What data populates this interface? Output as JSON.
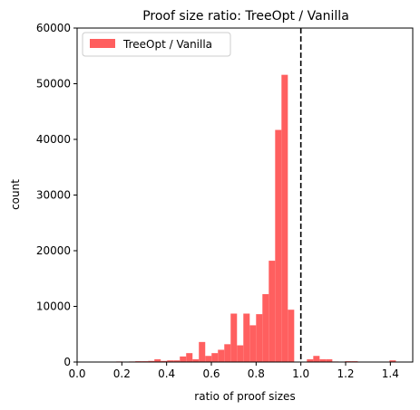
{
  "chart_data": {
    "type": "bar",
    "title": "Proof size ratio: TreeOpt / Vanilla",
    "xlabel": "ratio of proof sizes",
    "ylabel": "count",
    "xlim": [
      0.0,
      1.5
    ],
    "ylim": [
      0,
      60000
    ],
    "xticks": [
      0.0,
      0.2,
      0.4,
      0.6,
      0.8,
      1.0,
      1.2,
      1.4
    ],
    "xtick_labels": [
      "0.0",
      "0.2",
      "0.4",
      "0.6",
      "0.8",
      "1.0",
      "1.2",
      "1.4"
    ],
    "yticks": [
      0,
      10000,
      20000,
      30000,
      40000,
      50000,
      60000
    ],
    "ytick_labels": [
      "0",
      "10000",
      "20000",
      "30000",
      "40000",
      "50000",
      "60000"
    ],
    "grid": false,
    "legend": {
      "placement": "top-left",
      "entries": [
        "TreeOpt / Vanilla"
      ]
    },
    "reference_line": {
      "x": 1.0,
      "style": "dashed",
      "color": "#000000"
    },
    "series": [
      {
        "name": "TreeOpt / Vanilla",
        "color": "#ff5f5f",
        "bin_width": 0.0284,
        "bins": [
          {
            "x0": 0.175,
            "count": 100
          },
          {
            "x0": 0.2034,
            "count": 50
          },
          {
            "x0": 0.2318,
            "count": 100
          },
          {
            "x0": 0.2602,
            "count": 150
          },
          {
            "x0": 0.2886,
            "count": 150
          },
          {
            "x0": 0.317,
            "count": 200
          },
          {
            "x0": 0.3454,
            "count": 500
          },
          {
            "x0": 0.3738,
            "count": 200
          },
          {
            "x0": 0.4022,
            "count": 300
          },
          {
            "x0": 0.4306,
            "count": 300
          },
          {
            "x0": 0.459,
            "count": 1000
          },
          {
            "x0": 0.4874,
            "count": 1600
          },
          {
            "x0": 0.5158,
            "count": 500
          },
          {
            "x0": 0.5442,
            "count": 3600
          },
          {
            "x0": 0.5726,
            "count": 1100
          },
          {
            "x0": 0.601,
            "count": 1600
          },
          {
            "x0": 0.6294,
            "count": 2200
          },
          {
            "x0": 0.6578,
            "count": 3200
          },
          {
            "x0": 0.6862,
            "count": 8700
          },
          {
            "x0": 0.7146,
            "count": 3000
          },
          {
            "x0": 0.743,
            "count": 8700
          },
          {
            "x0": 0.7714,
            "count": 6600
          },
          {
            "x0": 0.7998,
            "count": 8600
          },
          {
            "x0": 0.8282,
            "count": 12200
          },
          {
            "x0": 0.8566,
            "count": 18200
          },
          {
            "x0": 0.885,
            "count": 41700
          },
          {
            "x0": 0.9134,
            "count": 51600
          },
          {
            "x0": 0.9418,
            "count": 9400
          },
          {
            "x0": 1.027,
            "count": 500
          },
          {
            "x0": 1.0554,
            "count": 1100
          },
          {
            "x0": 1.0838,
            "count": 500
          },
          {
            "x0": 1.1122,
            "count": 500
          },
          {
            "x0": 1.1406,
            "count": 100
          },
          {
            "x0": 1.1974,
            "count": 150
          },
          {
            "x0": 1.2258,
            "count": 150
          },
          {
            "x0": 1.3962,
            "count": 300
          }
        ]
      }
    ]
  }
}
